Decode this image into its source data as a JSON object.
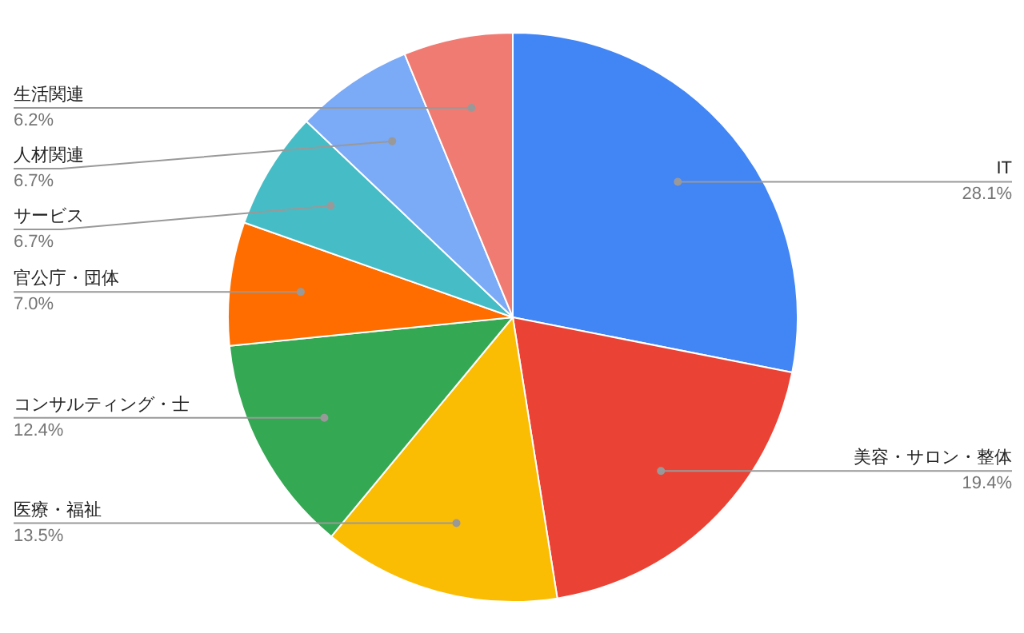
{
  "chart_data": {
    "type": "pie",
    "categories": [
      "IT",
      "美容・サロン・整体",
      "医療・福祉",
      "コンサルティング・士",
      "官公庁・団体",
      "サービス",
      "人材関連",
      "生活関連"
    ],
    "values": [
      28.1,
      19.4,
      13.5,
      12.4,
      7.0,
      6.7,
      6.7,
      6.2
    ],
    "value_labels": [
      "28.1%",
      "19.4%",
      "13.5%",
      "12.4%",
      "7.0%",
      "6.7%",
      "6.7%",
      "6.2%"
    ],
    "colors": [
      "#4285f4",
      "#ea4335",
      "#fbbc04",
      "#34a853",
      "#ff6d01",
      "#46bdc6",
      "#7baaf7",
      "#f07b72"
    ]
  }
}
